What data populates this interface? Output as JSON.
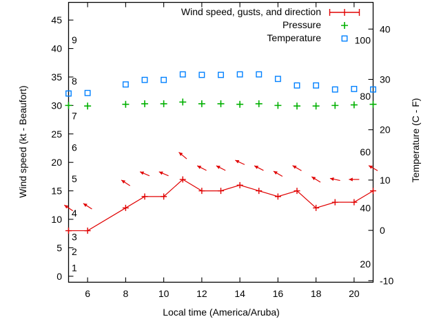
{
  "chart_data": {
    "type": "line",
    "title": "",
    "xlabel": "Local time (America/Aruba)",
    "ylabel_left": "Wind speed (kt - Beaufort)",
    "ylabel_right": "Temperature (C - F)",
    "grid": false,
    "legend_position": "top-right-inside",
    "x_range": [
      5,
      21
    ],
    "y_left_range": [
      -1.05,
      48.1
    ],
    "y_right_range": [
      -10.3,
      45.3
    ],
    "x_ticks": [
      6,
      8,
      10,
      12,
      14,
      16,
      18,
      20
    ],
    "y_left_ticks": [
      0,
      5,
      10,
      15,
      20,
      25,
      30,
      35,
      40,
      45
    ],
    "y_right_ticks": [
      -10,
      0,
      10,
      20,
      30,
      40
    ],
    "beaufort_scale_labels": [
      {
        "label": "1",
        "kt": 1.5
      },
      {
        "label": "2",
        "kt": 4.3
      },
      {
        "label": "3",
        "kt": 6.9
      },
      {
        "label": "4",
        "kt": 11.1
      },
      {
        "label": "5",
        "kt": 17.1
      },
      {
        "label": "6",
        "kt": 22.6
      },
      {
        "label": "7",
        "kt": 28.2
      },
      {
        "label": "8",
        "kt": 34.3
      },
      {
        "label": "9",
        "kt": 41.5
      }
    ],
    "fahrenheit_scale_labels": [
      20,
      40,
      60,
      80,
      100
    ],
    "x": [
      5,
      6,
      8,
      9,
      10,
      11,
      12,
      13,
      14,
      15,
      16,
      17,
      18,
      19,
      20,
      21
    ],
    "series": [
      {
        "name": "Wind speed, gusts, and direction",
        "color": "#e00000",
        "axis": "left",
        "marker": "plus",
        "line": true,
        "values": [
          8,
          8,
          12,
          14,
          14,
          17,
          15,
          15,
          16,
          15,
          14,
          15,
          12,
          13,
          13,
          15
        ],
        "gusts": [
          12,
          12.3,
          16.4,
          18,
          18,
          21.2,
          19,
          19,
          20,
          19,
          18,
          19,
          17,
          17,
          17,
          19
        ],
        "direction_deg": [
          146,
          147,
          147,
          157,
          157,
          140,
          153,
          153,
          155,
          153,
          150,
          150,
          148,
          168,
          180,
          150
        ]
      },
      {
        "name": "Pressure",
        "color": "#00b000",
        "axis": "left",
        "marker": "plus",
        "line": false,
        "values": [
          30.0,
          29.9,
          30.2,
          30.3,
          30.3,
          30.6,
          30.3,
          30.3,
          30.2,
          30.3,
          30.0,
          29.9,
          29.9,
          30.0,
          30.1,
          30.2
        ]
      },
      {
        "name": "Temperature",
        "color": "#0080ff",
        "axis": "right",
        "marker": "square",
        "line": false,
        "values": [
          27.2,
          27.3,
          29.0,
          29.9,
          29.9,
          31.0,
          30.9,
          30.9,
          31.0,
          31.0,
          30.1,
          28.8,
          28.8,
          28.0,
          28.1,
          28.0
        ]
      }
    ]
  }
}
